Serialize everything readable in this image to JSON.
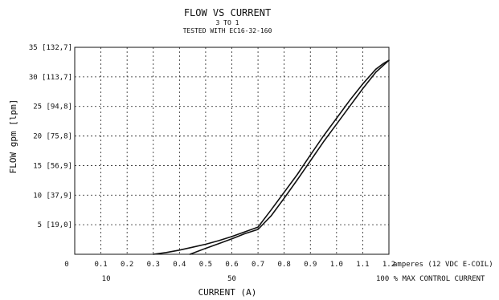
{
  "chart_data": {
    "type": "line",
    "title": "FLOW VS CURRENT",
    "subtitle1": "3 TO 1",
    "subtitle2": "TESTED WITH EC16-32-160",
    "ylabel": "FLOW gpm [lpm]",
    "xlabel": "CURRENT (A)",
    "x_unit_note": "amperes (12 VDC E-COIL)",
    "x2_unit_note": "100 % MAX CONTROL CURRENT",
    "xlim": [
      0,
      1.2
    ],
    "ylim": [
      0,
      35
    ],
    "grid": true,
    "x_ticks": [
      {
        "v": 0,
        "label": "0"
      },
      {
        "v": 0.1,
        "label": "0.1"
      },
      {
        "v": 0.2,
        "label": "0.2"
      },
      {
        "v": 0.3,
        "label": "0.3"
      },
      {
        "v": 0.4,
        "label": "0.4"
      },
      {
        "v": 0.5,
        "label": "0.5"
      },
      {
        "v": 0.6,
        "label": "0.6"
      },
      {
        "v": 0.7,
        "label": "0.7"
      },
      {
        "v": 0.8,
        "label": "0.8"
      },
      {
        "v": 0.9,
        "label": "0.9"
      },
      {
        "v": 1.0,
        "label": "1.0"
      },
      {
        "v": 1.1,
        "label": "1.1"
      },
      {
        "v": 1.2,
        "label": "1.2"
      }
    ],
    "x2_ticks": [
      {
        "v": 0.12,
        "label": "10"
      },
      {
        "v": 0.6,
        "label": "50"
      }
    ],
    "y_ticks": [
      {
        "v": 5,
        "label": "5 [19,0]"
      },
      {
        "v": 10,
        "label": "10 [37,9]"
      },
      {
        "v": 15,
        "label": "15 [56,9]"
      },
      {
        "v": 20,
        "label": "20 [75,8]"
      },
      {
        "v": 25,
        "label": "25 [94,8]"
      },
      {
        "v": 30,
        "label": "30 [113,7]"
      },
      {
        "v": 35,
        "label": "35 [132,7]"
      }
    ],
    "series": [
      {
        "x": [
          0.3,
          0.35,
          0.4,
          0.45,
          0.5,
          0.55,
          0.6,
          0.65,
          0.7,
          0.75,
          0.8,
          0.85,
          0.9,
          0.95,
          1.0,
          1.05,
          1.1,
          1.15,
          1.18,
          1.2
        ],
        "y": [
          0.0,
          0.3,
          0.7,
          1.2,
          1.7,
          2.3,
          3.0,
          3.8,
          4.6,
          7.5,
          10.5,
          13.5,
          16.8,
          20.0,
          23.0,
          26.0,
          28.8,
          31.3,
          32.3,
          32.8
        ]
      },
      {
        "x": [
          0.44,
          0.5,
          0.55,
          0.6,
          0.65,
          0.7,
          0.75,
          0.8,
          0.85,
          0.9,
          0.95,
          1.0,
          1.05,
          1.1,
          1.15,
          1.2
        ],
        "y": [
          0.0,
          1.0,
          1.8,
          2.6,
          3.5,
          4.2,
          6.5,
          9.5,
          12.6,
          15.8,
          19.0,
          22.0,
          25.0,
          28.0,
          30.8,
          32.8
        ]
      }
    ]
  }
}
